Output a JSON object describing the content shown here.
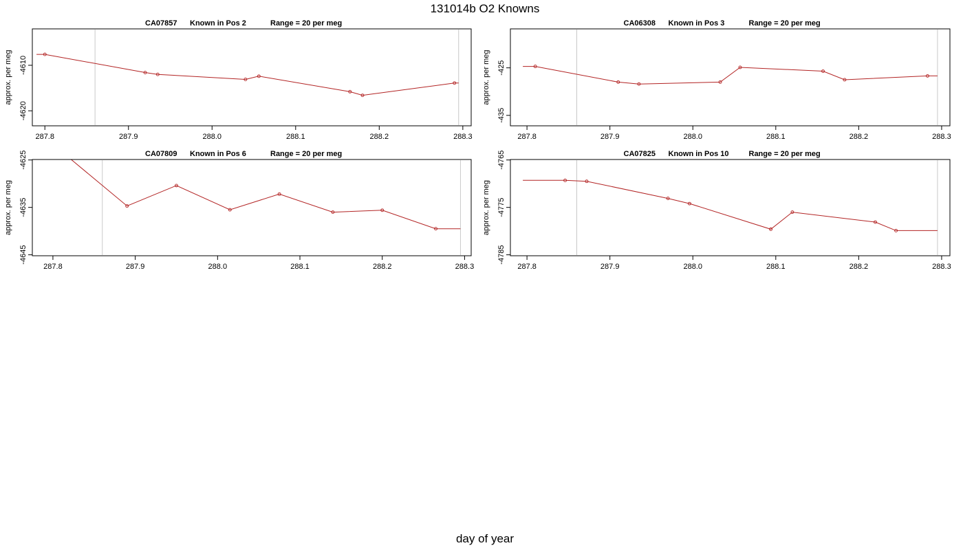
{
  "page": {
    "title": "131014b   O2 Knowns",
    "xlabel": "day of year"
  },
  "colors": {
    "series": "#b22222",
    "frame": "#000000",
    "marker": "#c8c8c8"
  },
  "chart_data": [
    {
      "type": "line",
      "panel_id": "CA07857",
      "title": {
        "id": "CA07857",
        "position": "Known in Pos 2",
        "range": "Range = 20 per meg"
      },
      "ylabel": "approx. per meg",
      "xlim": [
        287.785,
        288.31
      ],
      "ylim": [
        -4623.3,
        -4602.0
      ],
      "xticks": [
        "287.8",
        "287.9",
        "288.0",
        "288.1",
        "288.2",
        "288.3"
      ],
      "yticks": [
        "-4610",
        "-4620"
      ],
      "vlines": [
        287.86,
        288.295
      ],
      "series": [
        {
          "x": [
            287.79,
            287.8,
            287.92,
            287.935,
            288.04,
            288.056,
            288.165,
            288.18,
            288.29,
            288.295
          ],
          "y": [
            -4607.6,
            -4607.6,
            -4611.6,
            -4612.0,
            -4613.1,
            -4612.4,
            -4615.8,
            -4616.6,
            -4613.9,
            -4613.9
          ],
          "markers": [
            1,
            2,
            3,
            4,
            5,
            6,
            7,
            8
          ]
        }
      ]
    },
    {
      "type": "line",
      "panel_id": "CA06308",
      "title": {
        "id": "CA06308",
        "position": "Known in Pos 3",
        "range": "Range = 20 per meg"
      },
      "ylabel": "approx. per meg",
      "xlim": [
        287.78,
        288.31
      ],
      "ylim": [
        -437.2,
        -416.8
      ],
      "xticks": [
        "287.8",
        "287.9",
        "288.0",
        "288.1",
        "288.2",
        "288.3"
      ],
      "yticks": [
        "-425",
        "-435"
      ],
      "vlines": [
        287.86,
        288.295
      ],
      "series": [
        {
          "x": [
            287.795,
            287.81,
            287.91,
            287.935,
            288.033,
            288.057,
            288.157,
            288.183,
            288.283,
            288.295
          ],
          "y": [
            -424.7,
            -424.7,
            -428.0,
            -428.4,
            -428.0,
            -424.9,
            -425.7,
            -427.5,
            -426.7,
            -426.7
          ],
          "markers": [
            1,
            2,
            3,
            4,
            5,
            6,
            7,
            8
          ]
        }
      ]
    },
    {
      "type": "line",
      "panel_id": "CA07809",
      "title": {
        "id": "CA07809",
        "position": "Known in Pos 6",
        "range": "Range = 20 per meg"
      },
      "ylabel": "approx. per meg",
      "xlim": [
        287.775,
        288.308
      ],
      "ylim": [
        -4645.2,
        -4624.9
      ],
      "xticks": [
        "287.8",
        "287.9",
        "288.0",
        "288.1",
        "288.2",
        "288.3"
      ],
      "yticks": [
        "-4625",
        "-4635",
        "-4645"
      ],
      "vlines": [
        287.86,
        288.295
      ],
      "series": [
        {
          "x": [
            287.8,
            287.89,
            287.95,
            288.015,
            288.075,
            288.14,
            288.2,
            288.265,
            288.295
          ],
          "y": [
            -4621.7,
            -4634.7,
            -4630.4,
            -4635.5,
            -4632.2,
            -4636.0,
            -4635.6,
            -4639.5,
            -4639.5
          ],
          "markers": [
            1,
            2,
            3,
            4,
            5,
            6,
            7
          ]
        }
      ]
    },
    {
      "type": "line",
      "panel_id": "CA07825",
      "title": {
        "id": "CA07825",
        "position": "Known in Pos 10",
        "range": "Range = 20 per meg"
      },
      "ylabel": "approx. per meg",
      "xlim": [
        287.78,
        288.31
      ],
      "ylim": [
        -4785.2,
        -4764.9
      ],
      "xticks": [
        "287.8",
        "287.9",
        "288.0",
        "288.1",
        "288.2",
        "288.3"
      ],
      "yticks": [
        "-4765",
        "-4775",
        "-4785"
      ],
      "vlines": [
        287.86,
        288.295
      ],
      "series": [
        {
          "x": [
            287.795,
            287.846,
            287.872,
            287.97,
            287.996,
            288.094,
            288.12,
            288.22,
            288.245,
            288.295
          ],
          "y": [
            -4769.3,
            -4769.3,
            -4769.5,
            -4773.1,
            -4774.2,
            -4779.6,
            -4776.0,
            -4778.1,
            -4779.9,
            -4779.9
          ],
          "markers": [
            1,
            2,
            3,
            4,
            5,
            6,
            7,
            8
          ]
        }
      ]
    }
  ]
}
